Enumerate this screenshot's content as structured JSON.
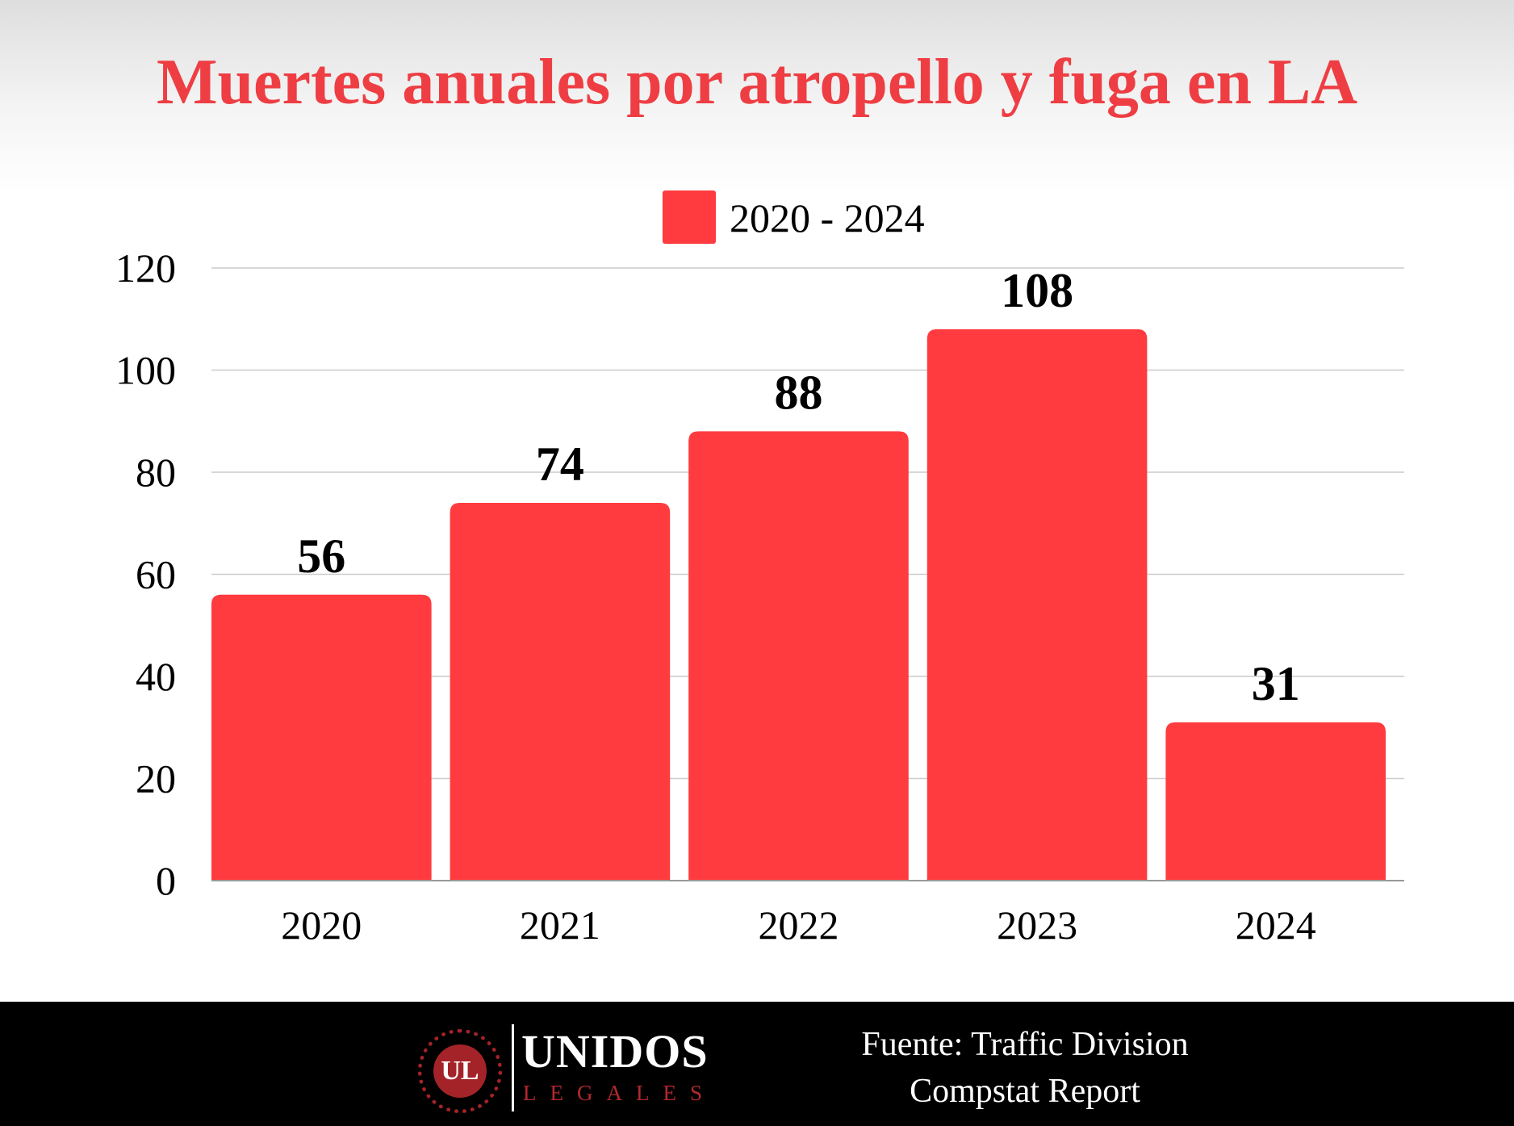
{
  "chart_data": {
    "type": "bar",
    "title": "Muertes anuales por atropello y fuga en LA",
    "categories": [
      "2020",
      "2021",
      "2022",
      "2023",
      "2024"
    ],
    "series": [
      {
        "name": "2020 - 2024",
        "values": [
          56,
          74,
          88,
          108,
          31
        ]
      }
    ],
    "data_labels": [
      "56",
      "74",
      "88",
      "108",
      "31"
    ],
    "ylim": [
      0,
      120
    ],
    "yticks": [
      0,
      20,
      40,
      60,
      80,
      100,
      120
    ],
    "ytick_labels": [
      "0",
      "20",
      "40",
      "60",
      "80",
      "100",
      "120"
    ],
    "xlabel": "",
    "ylabel": "",
    "grid": true,
    "legend_position": "top-center",
    "colors": {
      "bar": "#ff3b3f",
      "title": "#ee3e43",
      "grid": "#cccccc",
      "axis": "#999999",
      "text": "#000000"
    }
  },
  "footer": {
    "logo": {
      "mark": "UL",
      "name": "UNIDOS",
      "subtitle": "LEGALES",
      "name_color": "#ffffff",
      "subtitle_color": "#b3282d",
      "emblem_color": "#a42328"
    },
    "source_line_1": "Fuente: Traffic Division",
    "source_line_2": "Compstat Report",
    "background": "#000000"
  }
}
